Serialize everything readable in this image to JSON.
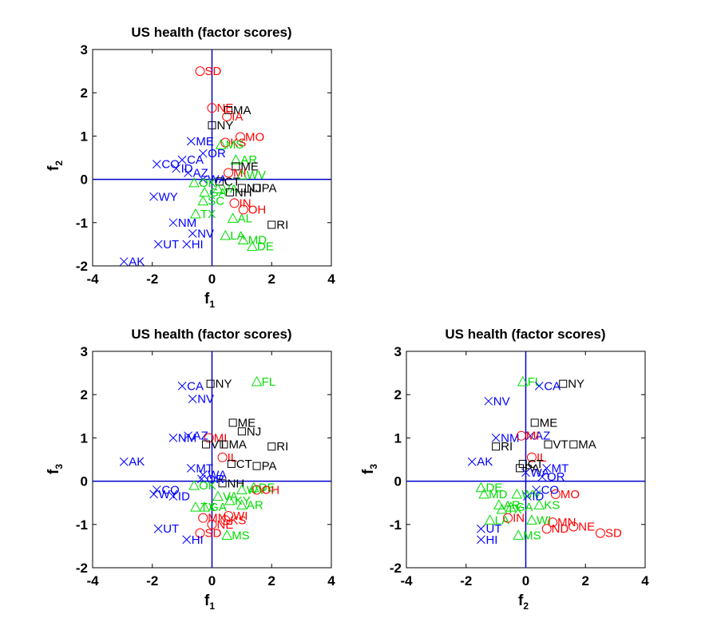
{
  "colors": {
    "group1": "#000000",
    "group2": "#ff0000",
    "group3": "#00dd00",
    "group4": "#0000ff",
    "axis": "#0000cc"
  },
  "chart_data": [
    {
      "type": "scatter",
      "title": "US health (factor scores)",
      "xlabel": "f",
      "xlabel_sub": "1",
      "ylabel": "f",
      "ylabel_sub": "2",
      "xlim": [
        -4,
        4
      ],
      "ylim": [
        -2,
        3
      ],
      "xticks": [
        "-4",
        "-2",
        "0",
        "2",
        "4"
      ],
      "yticks": [
        "-2",
        "-1",
        "0",
        "1",
        "2",
        "3"
      ],
      "points": [
        {
          "label": "SD",
          "g": 2,
          "x": -0.4,
          "y": 2.5
        },
        {
          "label": "NE",
          "g": 2,
          "x": 0.0,
          "y": 1.65
        },
        {
          "label": "MA",
          "g": 1,
          "x": 0.55,
          "y": 1.6
        },
        {
          "label": "IA",
          "g": 2,
          "x": 0.5,
          "y": 1.45
        },
        {
          "label": "NY",
          "g": 1,
          "x": 0.0,
          "y": 1.25
        },
        {
          "label": "MO",
          "g": 2,
          "x": 0.95,
          "y": 0.98
        },
        {
          "label": "ME",
          "g": 4,
          "x": -0.7,
          "y": 0.88
        },
        {
          "label": "KS",
          "g": 2,
          "x": 0.45,
          "y": 0.85
        },
        {
          "label": "MS",
          "g": 3,
          "x": 0.3,
          "y": 0.8
        },
        {
          "label": "OR",
          "g": 4,
          "x": -0.3,
          "y": 0.6
        },
        {
          "label": "AR",
          "g": 3,
          "x": 0.8,
          "y": 0.45
        },
        {
          "label": "CA",
          "g": 4,
          "x": -1.0,
          "y": 0.45
        },
        {
          "label": "CO",
          "g": 4,
          "x": -1.85,
          "y": 0.35
        },
        {
          "label": "ME",
          "g": 1,
          "x": 0.8,
          "y": 0.3
        },
        {
          "label": "ID",
          "g": 4,
          "x": -1.2,
          "y": 0.25
        },
        {
          "label": "AZ",
          "g": 4,
          "x": -0.8,
          "y": 0.15
        },
        {
          "label": "MI",
          "g": 2,
          "x": 0.55,
          "y": 0.15
        },
        {
          "label": "WV",
          "g": 3,
          "x": 1.0,
          "y": 0.1
        },
        {
          "label": "WA",
          "g": 4,
          "x": -0.3,
          "y": 0.0
        },
        {
          "label": "CT",
          "g": 1,
          "x": 0.25,
          "y": -0.05
        },
        {
          "label": "OK",
          "g": 3,
          "x": -0.6,
          "y": -0.08
        },
        {
          "label": "NJ",
          "g": 1,
          "x": 1.0,
          "y": -0.2
        },
        {
          "label": "PA",
          "g": 1,
          "x": 1.5,
          "y": -0.2
        },
        {
          "label": "VA",
          "g": 3,
          "x": 0.2,
          "y": -0.22
        },
        {
          "label": "NH",
          "g": 1,
          "x": 0.6,
          "y": -0.3
        },
        {
          "label": "GA",
          "g": 3,
          "x": -0.25,
          "y": -0.3
        },
        {
          "label": "WY",
          "g": 4,
          "x": -1.95,
          "y": -0.4
        },
        {
          "label": "SC",
          "g": 3,
          "x": -0.3,
          "y": -0.5
        },
        {
          "label": "IN",
          "g": 2,
          "x": 0.75,
          "y": -0.55
        },
        {
          "label": "OH",
          "g": 2,
          "x": 1.05,
          "y": -0.7
        },
        {
          "label": "TX",
          "g": 3,
          "x": -0.55,
          "y": -0.8
        },
        {
          "label": "AL",
          "g": 3,
          "x": 0.7,
          "y": -0.9
        },
        {
          "label": "NM",
          "g": 4,
          "x": -1.3,
          "y": -1.0
        },
        {
          "label": "RI",
          "g": 1,
          "x": 2.0,
          "y": -1.05
        },
        {
          "label": "NV",
          "g": 4,
          "x": -0.65,
          "y": -1.25
        },
        {
          "label": "LA",
          "g": 3,
          "x": 0.45,
          "y": -1.3
        },
        {
          "label": "MD",
          "g": 3,
          "x": 1.05,
          "y": -1.4
        },
        {
          "label": "UT",
          "g": 4,
          "x": -1.8,
          "y": -1.5
        },
        {
          "label": "HI",
          "g": 4,
          "x": -0.85,
          "y": -1.5
        },
        {
          "label": "DE",
          "g": 3,
          "x": 1.35,
          "y": -1.55
        },
        {
          "label": "AK",
          "g": 4,
          "x": -2.95,
          "y": -1.9
        }
      ]
    },
    {
      "type": "scatter",
      "title": "US health (factor scores)",
      "xlabel": "f",
      "xlabel_sub": "1",
      "ylabel": "f",
      "ylabel_sub": "3",
      "xlim": [
        -4,
        4
      ],
      "ylim": [
        -2,
        3
      ],
      "xticks": [
        "-4",
        "-2",
        "0",
        "2",
        "4"
      ],
      "yticks": [
        "-2",
        "-1",
        "0",
        "1",
        "2",
        "3"
      ],
      "points": [
        {
          "label": "FL",
          "g": 3,
          "x": 1.5,
          "y": 2.3
        },
        {
          "label": "NY",
          "g": 1,
          "x": -0.05,
          "y": 2.25
        },
        {
          "label": "CA",
          "g": 4,
          "x": -1.0,
          "y": 2.2
        },
        {
          "label": "NV",
          "g": 4,
          "x": -0.65,
          "y": 1.9
        },
        {
          "label": "ME",
          "g": 1,
          "x": 0.7,
          "y": 1.35
        },
        {
          "label": "NJ",
          "g": 1,
          "x": 1.0,
          "y": 1.15
        },
        {
          "label": "AZ",
          "g": 4,
          "x": -0.8,
          "y": 1.05
        },
        {
          "label": "MI",
          "g": 2,
          "x": -0.1,
          "y": 1.0
        },
        {
          "label": "NM",
          "g": 4,
          "x": -1.3,
          "y": 1.0
        },
        {
          "label": "VT",
          "g": 1,
          "x": -0.2,
          "y": 0.85
        },
        {
          "label": "MA",
          "g": 1,
          "x": 0.4,
          "y": 0.85
        },
        {
          "label": "RI",
          "g": 1,
          "x": 2.0,
          "y": 0.8
        },
        {
          "label": "IL",
          "g": 2,
          "x": 0.35,
          "y": 0.55
        },
        {
          "label": "AK",
          "g": 4,
          "x": -2.95,
          "y": 0.45
        },
        {
          "label": "CT",
          "g": 1,
          "x": 0.65,
          "y": 0.4
        },
        {
          "label": "PA",
          "g": 1,
          "x": 1.5,
          "y": 0.35
        },
        {
          "label": "MT",
          "g": 4,
          "x": -0.7,
          "y": 0.3
        },
        {
          "label": "WA",
          "g": 4,
          "x": -0.3,
          "y": 0.15
        },
        {
          "label": "OR",
          "g": 4,
          "x": -0.35,
          "y": 0.05
        },
        {
          "label": "NH",
          "g": 1,
          "x": 0.35,
          "y": -0.05
        },
        {
          "label": "DE",
          "g": 3,
          "x": 1.4,
          "y": -0.15
        },
        {
          "label": "OK",
          "g": 3,
          "x": -0.6,
          "y": -0.1
        },
        {
          "label": "WV",
          "g": 3,
          "x": 1.0,
          "y": -0.2
        },
        {
          "label": "CO",
          "g": 4,
          "x": -1.85,
          "y": -0.2
        },
        {
          "label": "OH",
          "g": 2,
          "x": 1.5,
          "y": -0.2
        },
        {
          "label": "WY",
          "g": 4,
          "x": -1.95,
          "y": -0.3
        },
        {
          "label": "ID",
          "g": 4,
          "x": -1.3,
          "y": -0.35
        },
        {
          "label": "VA",
          "g": 3,
          "x": 0.2,
          "y": -0.35
        },
        {
          "label": "KY",
          "g": 3,
          "x": 0.6,
          "y": -0.45
        },
        {
          "label": "AR",
          "g": 3,
          "x": 1.0,
          "y": -0.55
        },
        {
          "label": "TX",
          "g": 3,
          "x": -0.55,
          "y": -0.6
        },
        {
          "label": "GA",
          "g": 3,
          "x": -0.25,
          "y": -0.6
        },
        {
          "label": "WI",
          "g": 2,
          "x": 0.55,
          "y": -0.8
        },
        {
          "label": "KS",
          "g": 2,
          "x": 0.45,
          "y": -0.9
        },
        {
          "label": "MN",
          "g": 2,
          "x": -0.3,
          "y": -0.85
        },
        {
          "label": "NE",
          "g": 2,
          "x": 0.0,
          "y": -1.0
        },
        {
          "label": "UT",
          "g": 4,
          "x": -1.8,
          "y": -1.1
        },
        {
          "label": "SD",
          "g": 2,
          "x": -0.4,
          "y": -1.2
        },
        {
          "label": "MS",
          "g": 3,
          "x": 0.5,
          "y": -1.25
        },
        {
          "label": "HI",
          "g": 4,
          "x": -0.85,
          "y": -1.35
        }
      ]
    },
    {
      "type": "scatter",
      "title": "US health (factor scores)",
      "xlabel": "f",
      "xlabel_sub": "2",
      "ylabel": "f",
      "ylabel_sub": "3",
      "xlim": [
        -4,
        4
      ],
      "ylim": [
        -2,
        3
      ],
      "xticks": [
        "-4",
        "-2",
        "0",
        "2",
        "4"
      ],
      "yticks": [
        "-2",
        "-1",
        "0",
        "1",
        "2",
        "3"
      ],
      "points": [
        {
          "label": "FL",
          "g": 3,
          "x": -0.1,
          "y": 2.3
        },
        {
          "label": "NY",
          "g": 1,
          "x": 1.25,
          "y": 2.25
        },
        {
          "label": "CA",
          "g": 4,
          "x": 0.45,
          "y": 2.2
        },
        {
          "label": "NV",
          "g": 4,
          "x": -1.25,
          "y": 1.85
        },
        {
          "label": "ME",
          "g": 1,
          "x": 0.3,
          "y": 1.35
        },
        {
          "label": "NM",
          "g": 4,
          "x": -1.0,
          "y": 1.0
        },
        {
          "label": "AZ",
          "g": 4,
          "x": 0.15,
          "y": 1.05
        },
        {
          "label": "MI",
          "g": 2,
          "x": -0.15,
          "y": 1.05
        },
        {
          "label": "VT",
          "g": 1,
          "x": 0.75,
          "y": 0.85
        },
        {
          "label": "MA",
          "g": 1,
          "x": 1.6,
          "y": 0.85
        },
        {
          "label": "RI",
          "g": 1,
          "x": -1.0,
          "y": 0.8
        },
        {
          "label": "IL",
          "g": 2,
          "x": 0.2,
          "y": 0.55
        },
        {
          "label": "AK",
          "g": 4,
          "x": -1.8,
          "y": 0.45
        },
        {
          "label": "CT",
          "g": 1,
          "x": -0.1,
          "y": 0.4
        },
        {
          "label": "PA",
          "g": 1,
          "x": -0.2,
          "y": 0.3
        },
        {
          "label": "MT",
          "g": 4,
          "x": 0.7,
          "y": 0.3
        },
        {
          "label": "WA",
          "g": 4,
          "x": 0.0,
          "y": 0.2
        },
        {
          "label": "OR",
          "g": 4,
          "x": 0.55,
          "y": 0.1
        },
        {
          "label": "DE",
          "g": 3,
          "x": -1.5,
          "y": -0.15
        },
        {
          "label": "CO",
          "g": 4,
          "x": 0.35,
          "y": -0.2
        },
        {
          "label": "MO",
          "g": 2,
          "x": 1.0,
          "y": -0.3
        },
        {
          "label": "MD",
          "g": 3,
          "x": -1.4,
          "y": -0.3
        },
        {
          "label": "WV",
          "g": 3,
          "x": -0.3,
          "y": -0.3
        },
        {
          "label": "ID",
          "g": 4,
          "x": 0.05,
          "y": -0.35
        },
        {
          "label": "AR",
          "g": 3,
          "x": -0.9,
          "y": -0.55
        },
        {
          "label": "GA",
          "g": 3,
          "x": -0.5,
          "y": -0.6
        },
        {
          "label": "KS",
          "g": 3,
          "x": 0.45,
          "y": -0.55
        },
        {
          "label": "TX",
          "g": 3,
          "x": -0.8,
          "y": -0.65
        },
        {
          "label": "LA",
          "g": 3,
          "x": -1.2,
          "y": -0.9
        },
        {
          "label": "IN",
          "g": 2,
          "x": -0.6,
          "y": -0.85
        },
        {
          "label": "WI",
          "g": 3,
          "x": 0.2,
          "y": -0.9
        },
        {
          "label": "MN",
          "g": 2,
          "x": 0.9,
          "y": -0.95
        },
        {
          "label": "NE",
          "g": 2,
          "x": 1.6,
          "y": -1.05
        },
        {
          "label": "ND",
          "g": 2,
          "x": 0.7,
          "y": -1.1
        },
        {
          "label": "UT",
          "g": 4,
          "x": -1.5,
          "y": -1.1
        },
        {
          "label": "SD",
          "g": 2,
          "x": 2.5,
          "y": -1.2
        },
        {
          "label": "MS",
          "g": 3,
          "x": -0.25,
          "y": -1.25
        },
        {
          "label": "HI",
          "g": 4,
          "x": -1.5,
          "y": -1.35
        }
      ]
    }
  ]
}
